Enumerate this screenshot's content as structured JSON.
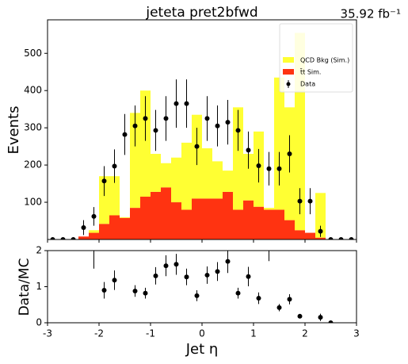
{
  "chart_data": [
    {
      "type": "histogram",
      "title": "jeteta  pret2bfwd",
      "annotation": "35.92 fb⁻¹",
      "ylabel": "Events",
      "bins": [
        -3.0,
        -2.8,
        -2.6,
        -2.4,
        -2.2,
        -2.0,
        -1.8,
        -1.6,
        -1.4,
        -1.2,
        -1.0,
        -0.8,
        -0.6,
        -0.4,
        -0.2,
        0.0,
        0.2,
        0.4,
        0.6,
        0.8,
        1.0,
        1.2,
        1.4,
        1.6,
        1.8,
        2.0,
        2.2,
        2.4,
        2.6,
        2.8,
        3.0
      ],
      "series": [
        {
          "name": "t̄t Sim.",
          "color": "#ff3311",
          "values": [
            0,
            0,
            0,
            8,
            18,
            42,
            65,
            58,
            85,
            115,
            128,
            140,
            100,
            80,
            110,
            110,
            110,
            128,
            80,
            105,
            88,
            80,
            80,
            52,
            25,
            18,
            5,
            0,
            0,
            0
          ]
        },
        {
          "name": "QCD Bkg (Sim.)",
          "color": "#ffff33",
          "values": [
            0,
            0,
            0,
            0,
            7,
            128,
            105,
            2,
            255,
            285,
            102,
            65,
            120,
            180,
            225,
            135,
            100,
            57,
            275,
            125,
            202,
            5,
            355,
            303,
            530,
            0,
            120,
            0,
            0,
            0
          ]
        }
      ],
      "data": {
        "name": "Data",
        "color": "#000000",
        "values": [
          0,
          0,
          0,
          32,
          62,
          157,
          197,
          282,
          305,
          325,
          293,
          325,
          365,
          365,
          250,
          325,
          305,
          315,
          293,
          240,
          198,
          190,
          190,
          230,
          103,
          103,
          22,
          0,
          0,
          0
        ],
        "errors": [
          0,
          0,
          0,
          20,
          25,
          40,
          45,
          55,
          55,
          60,
          55,
          60,
          65,
          65,
          50,
          60,
          55,
          60,
          55,
          50,
          45,
          45,
          45,
          50,
          35,
          35,
          15,
          0,
          0,
          0
        ]
      },
      "legend": "upper right",
      "xlim": [
        -3,
        3
      ],
      "xticks": [
        -3,
        -2,
        -1,
        0,
        1,
        2,
        3
      ],
      "ylim": [
        0,
        590
      ],
      "yticks": [
        100,
        200,
        300,
        400,
        500
      ]
    },
    {
      "type": "scatter",
      "xlabel": "Jet η",
      "ylabel": "Data/MC",
      "color": "#000000",
      "x": [
        -2.9,
        -2.7,
        -2.5,
        -2.3,
        -2.1,
        -1.9,
        -1.7,
        -1.5,
        -1.3,
        -1.1,
        -0.9,
        -0.7,
        -0.5,
        -0.3,
        -0.1,
        0.1,
        0.3,
        0.5,
        0.7,
        0.9,
        1.1,
        1.3,
        1.5,
        1.7,
        1.9,
        2.1,
        2.3,
        2.5,
        2.7,
        2.9
      ],
      "values": [
        null,
        null,
        null,
        null,
        2.5,
        0.9,
        1.18,
        null,
        0.88,
        0.82,
        1.3,
        1.58,
        1.62,
        1.27,
        0.75,
        1.32,
        1.42,
        1.7,
        0.82,
        1.28,
        0.68,
        2.24,
        0.42,
        0.65,
        0.18,
        null,
        0.15,
        0,
        null,
        null
      ],
      "errors": [
        null,
        null,
        null,
        null,
        1.0,
        0.23,
        0.27,
        null,
        0.16,
        0.15,
        0.24,
        0.29,
        0.29,
        0.23,
        0.15,
        0.24,
        0.26,
        0.32,
        0.15,
        0.27,
        0.16,
        0.53,
        0.1,
        0.14,
        0.06,
        null,
        0.1,
        0,
        null,
        null
      ],
      "xlim": [
        -3,
        3
      ],
      "xticks": [
        -3,
        -2,
        -1,
        0,
        1,
        2,
        3
      ],
      "ylim": [
        0,
        2
      ],
      "yticks": [
        0,
        1,
        2
      ]
    }
  ]
}
